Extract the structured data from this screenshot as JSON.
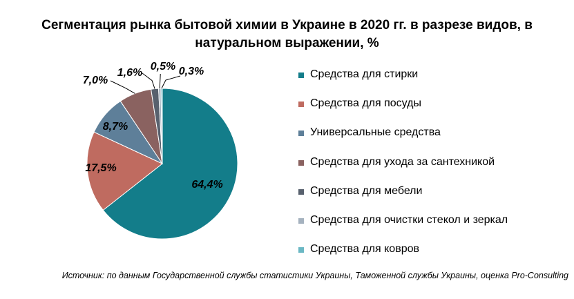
{
  "chart_data": {
    "type": "pie",
    "title": "Сегментация рынка бытовой химии в Украине в 2020 гг. в разрезе видов, в натуральном выражении, %",
    "series": [
      {
        "name": "Средства для стирки",
        "value": 64.4,
        "label": "64,4%",
        "color": "#137d8a"
      },
      {
        "name": "Средства для посуды",
        "value": 17.5,
        "label": "17,5%",
        "color": "#bf6b60"
      },
      {
        "name": "Универсальные средства",
        "value": 8.7,
        "label": "8,7%",
        "color": "#5e7f99"
      },
      {
        "name": "Средства для ухода за сантехникой",
        "value": 7.0,
        "label": "7,0%",
        "color": "#8a6260"
      },
      {
        "name": "Средства для мебели",
        "value": 1.6,
        "label": "1,6%",
        "color": "#58616e"
      },
      {
        "name": "Средства для очистки стекол и зеркал",
        "value": 0.5,
        "label": "0,5%",
        "color": "#a5b2bf"
      },
      {
        "name": "Средства для ковров",
        "value": 0.3,
        "label": "0,3%",
        "color": "#6bb8c4"
      }
    ],
    "legend_position": "right"
  },
  "source": "Источник: по данным Государственной службы статистики Украины, Таможенной службы Украины, оценка Pro-Consulting"
}
